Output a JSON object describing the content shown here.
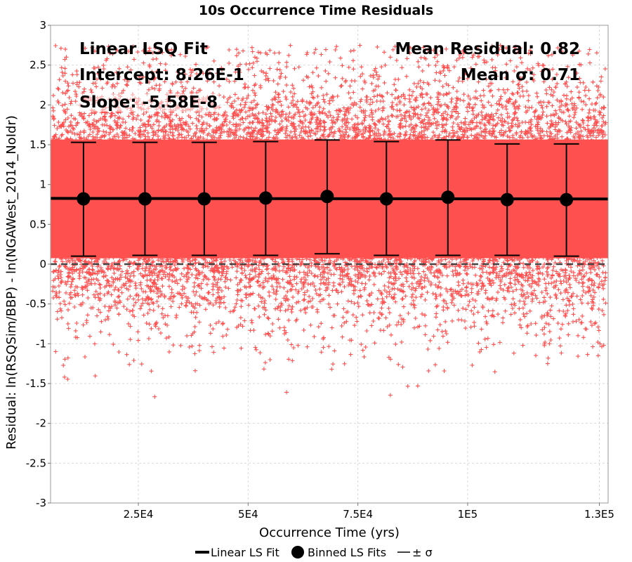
{
  "chart_data": {
    "type": "scatter",
    "title": "10s Occurrence Time Residuals",
    "xlabel": "Occurrence Time (yrs)",
    "ylabel": "Residual: ln(RSQSim/BBP) - ln(NGAWest_2014_NoIdr)",
    "xlim": [
      5000,
      132000
    ],
    "ylim": [
      -3,
      3
    ],
    "x_ticks": [
      25000,
      50000,
      75000,
      100000,
      130000
    ],
    "x_tick_labels": [
      "2.5E4",
      "5E4",
      "7.5E4",
      "1E5",
      "1.3E5"
    ],
    "y_ticks": [
      -3,
      -2.5,
      -2,
      -1.5,
      -1,
      -0.5,
      0,
      0.5,
      1,
      1.5,
      2,
      2.5,
      3
    ],
    "y_tick_labels": [
      "-3",
      "-2.5",
      "-2",
      "-1.5",
      "-1",
      "-0.5",
      "0",
      "0.5",
      "1",
      "1.5",
      "2",
      "2.5",
      "3"
    ],
    "grid": true,
    "legend_position": "bottom",
    "colors": {
      "scatter": "#ff5050",
      "fit": "#000000",
      "zero_line": "#444444"
    },
    "linear_fit": {
      "intercept": 0.826,
      "slope": -5.58e-08
    },
    "binned_fits": {
      "x": [
        12500,
        26500,
        40000,
        54000,
        68000,
        81500,
        95500,
        109000,
        122500
      ],
      "mean": [
        0.82,
        0.82,
        0.82,
        0.83,
        0.85,
        0.82,
        0.84,
        0.81,
        0.81
      ],
      "upper": [
        1.53,
        1.53,
        1.53,
        1.54,
        1.56,
        1.54,
        1.56,
        1.51,
        1.51
      ],
      "lower": [
        0.1,
        0.11,
        0.11,
        0.11,
        0.13,
        0.11,
        0.11,
        0.11,
        0.1
      ]
    },
    "scatter_summary": {
      "mean": 0.82,
      "sigma": 0.71
    },
    "legend": [
      {
        "label": "Linear LS Fit",
        "symbol": "line"
      },
      {
        "label": "Binned LS Fits",
        "symbol": "circle"
      },
      {
        "label": "± σ",
        "symbol": "line-thin"
      }
    ],
    "annotations": {
      "fit_title": "Linear LSQ Fit",
      "intercept": "Intercept: 8.26E-1",
      "slope": "Slope: -5.58E-8",
      "mean_residual": "Mean Residual: 0.82",
      "mean_sigma": "Mean σ: 0.71"
    }
  }
}
